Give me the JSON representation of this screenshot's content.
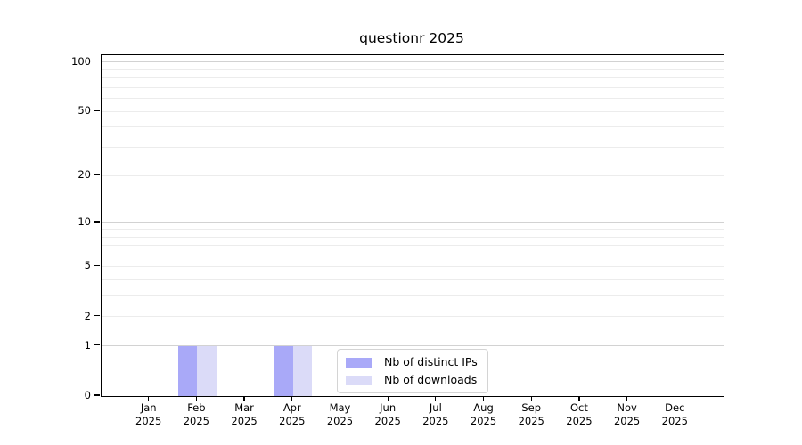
{
  "chart_data": {
    "type": "bar",
    "title": "questionr 2025",
    "xlabel": "",
    "ylabel": "",
    "categories": [
      "Jan",
      "Feb",
      "Mar",
      "Apr",
      "May",
      "Jun",
      "Jul",
      "Aug",
      "Sep",
      "Oct",
      "Nov",
      "Dec"
    ],
    "x_year_label": "2025",
    "series": [
      {
        "name": "Nb of distinct IPs",
        "color": "#a9a9f8",
        "values": [
          0,
          1,
          0,
          1,
          0,
          0,
          0,
          0,
          0,
          0,
          0,
          0
        ]
      },
      {
        "name": "Nb of downloads",
        "color": "#dbdbf8",
        "values": [
          0,
          1,
          0,
          1,
          0,
          0,
          0,
          0,
          0,
          0,
          0,
          0
        ]
      }
    ],
    "y_axis": {
      "scale": "log1p",
      "tick_values": [
        0,
        1,
        2,
        5,
        10,
        20,
        50,
        100
      ],
      "tick_labels": [
        "0",
        "1",
        "2",
        "5",
        "10",
        "20",
        "50",
        "100"
      ],
      "ylim": [
        0,
        110
      ],
      "gridlines_major": [
        1,
        10,
        100
      ],
      "gridlines_minor": [
        2,
        3,
        4,
        5,
        6,
        7,
        8,
        9,
        20,
        30,
        40,
        50,
        60,
        70,
        80,
        90
      ]
    },
    "legend": {
      "position": "bottom-center"
    },
    "colors": {
      "axis": "#000000",
      "grid_major": "#d2d2d2",
      "grid_minor": "#ececec",
      "background": "#ffffff"
    }
  }
}
